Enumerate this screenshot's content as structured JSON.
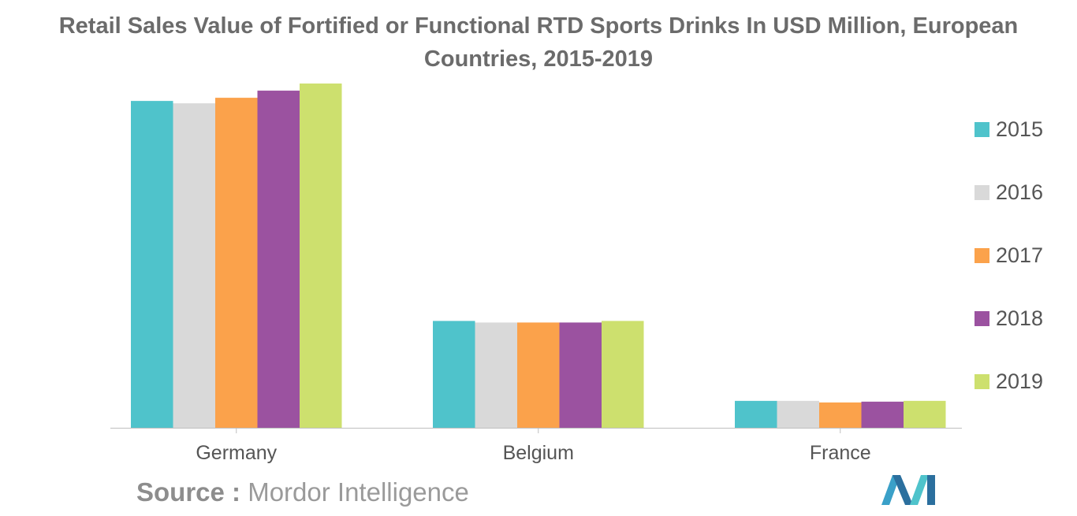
{
  "chart_data": {
    "type": "bar",
    "title": "Retail Sales Value of Fortified or Functional RTD Sports Drinks In USD Million, European Countries, 2015-2019",
    "title_lines": [
      "Retail Sales Value of Fortified or Functional RTD Sports Drinks In USD Million, European",
      "Countries, 2015-2019"
    ],
    "categories": [
      "Germany",
      "Belgium",
      "France"
    ],
    "series": [
      {
        "name": "2015",
        "color": "#4fc3cb",
        "values": [
          413,
          135,
          34
        ]
      },
      {
        "name": "2016",
        "color": "#d9d9d9",
        "values": [
          410,
          133,
          34
        ]
      },
      {
        "name": "2017",
        "color": "#fba24b",
        "values": [
          417,
          133,
          32
        ]
      },
      {
        "name": "2018",
        "color": "#9b52a0",
        "values": [
          426,
          133,
          33
        ]
      },
      {
        "name": "2019",
        "color": "#cde06e",
        "values": [
          435,
          135,
          34
        ]
      }
    ],
    "xlabel": "",
    "ylabel": "USD Million",
    "ylim": [
      0,
      440
    ],
    "grid": false,
    "legend_position": "right"
  },
  "source": {
    "key": "Source :",
    "value": "Mordor Intelligence"
  },
  "colors": {
    "axis": "#bfbfbf",
    "title": "#6b6b6b",
    "tick_label": "#555555"
  }
}
